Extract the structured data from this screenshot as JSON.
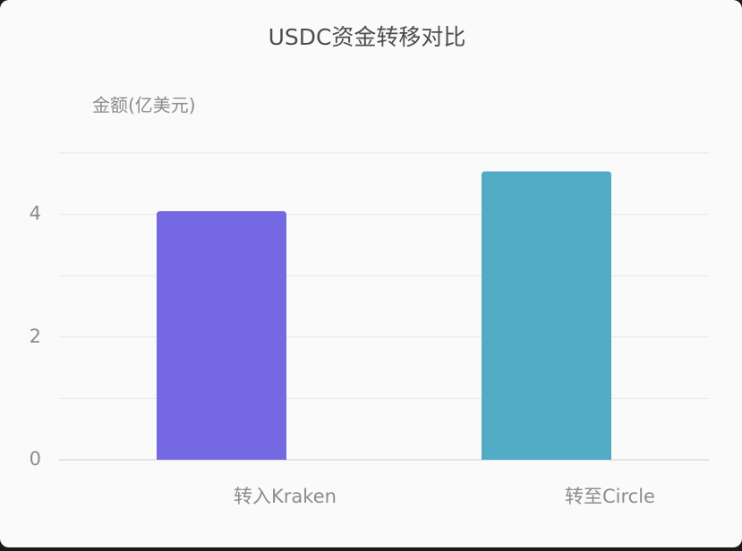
{
  "chart_data": {
    "type": "bar",
    "title": "USDC资金转移对比",
    "y_label": "金额(亿美元)",
    "categories": [
      "转入Kraken",
      "转至Circle"
    ],
    "values": [
      4.05,
      4.7
    ],
    "colors": [
      "#7468e3",
      "#52abc4"
    ],
    "ylim": [
      0,
      5
    ],
    "yticks": [
      0,
      2,
      4
    ],
    "minor_grid": [
      1,
      3,
      5
    ],
    "grid": true
  }
}
